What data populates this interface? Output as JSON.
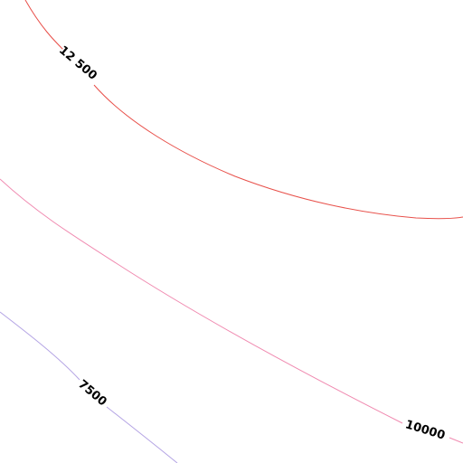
{
  "contours": [
    {
      "label": "12 500"
    },
    {
      "label": "10000"
    },
    {
      "label": "7500"
    }
  ]
}
